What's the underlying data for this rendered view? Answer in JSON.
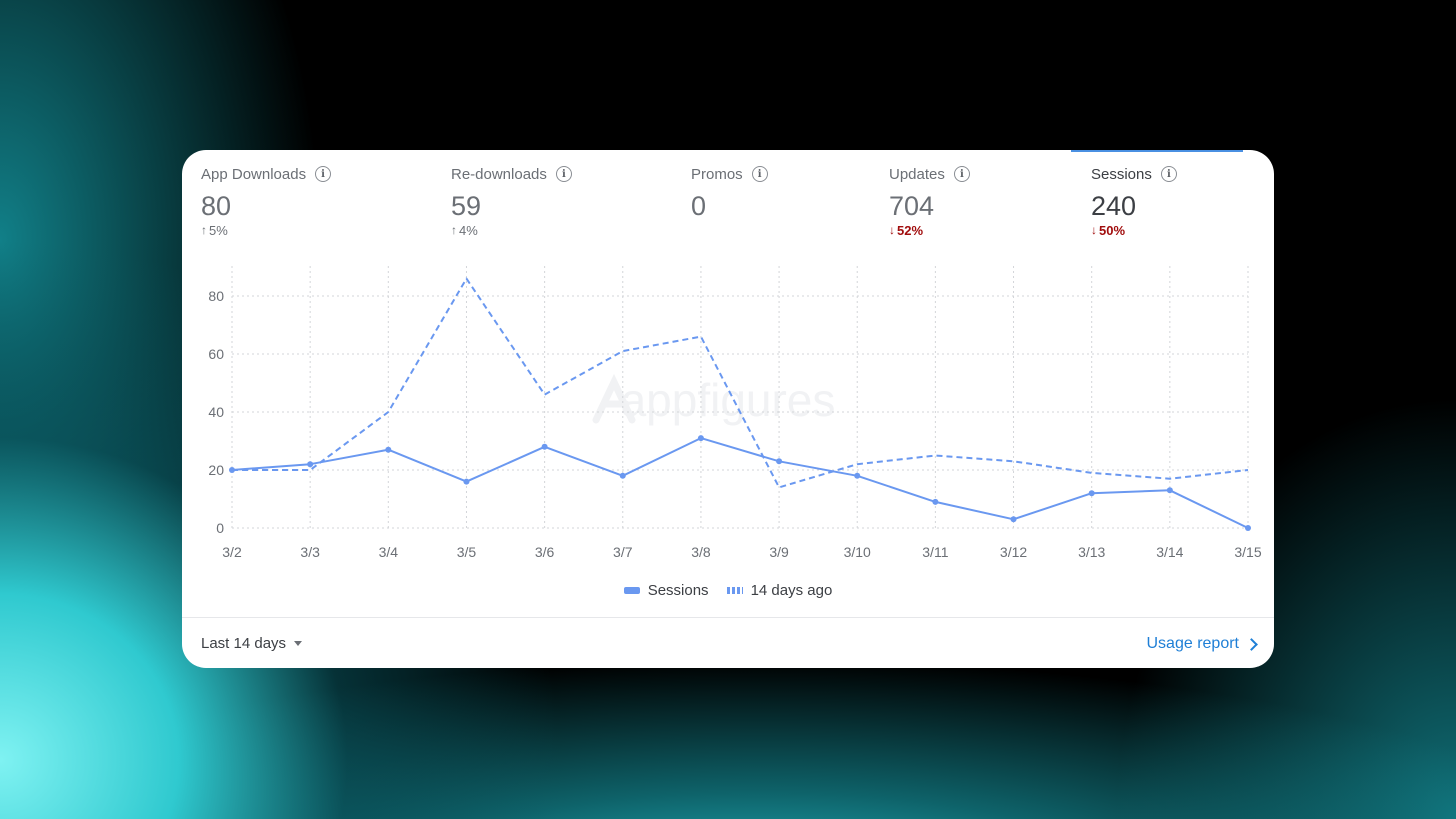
{
  "metrics": [
    {
      "label": "App Downloads",
      "value": "80",
      "change": "5%",
      "direction": "up",
      "active": false
    },
    {
      "label": "Re-downloads",
      "value": "59",
      "change": "4%",
      "direction": "up",
      "active": false
    },
    {
      "label": "Promos",
      "value": "0",
      "change": "",
      "direction": "none",
      "active": false
    },
    {
      "label": "Updates",
      "value": "704",
      "change": "52%",
      "direction": "down",
      "active": false
    },
    {
      "label": "Sessions",
      "value": "240",
      "change": "50%",
      "direction": "down",
      "active": true
    }
  ],
  "info_icon_glyph": "i",
  "watermark": "appfigures",
  "chart_data": {
    "type": "line",
    "x": [
      "3/2",
      "3/3",
      "3/4",
      "3/5",
      "3/6",
      "3/7",
      "3/8",
      "3/9",
      "3/10",
      "3/11",
      "3/12",
      "3/13",
      "3/14",
      "3/15"
    ],
    "series": [
      {
        "name": "Sessions",
        "style": "solid",
        "color": "#6a98f0",
        "values": [
          20,
          22,
          27,
          16,
          28,
          18,
          31,
          23,
          18,
          9,
          3,
          12,
          13,
          0
        ]
      },
      {
        "name": "14 days ago",
        "style": "dashed",
        "color": "#6a98f0",
        "values": [
          20,
          20,
          40,
          86,
          46,
          61,
          66,
          14,
          22,
          25,
          23,
          19,
          17,
          20
        ]
      }
    ],
    "yticks": [
      0,
      20,
      40,
      60,
      80
    ],
    "ylim": [
      0,
      90
    ],
    "grid": true,
    "legend": "bottom-center"
  },
  "footer": {
    "range_label": "Last 14 days",
    "usage_link": "Usage report"
  }
}
